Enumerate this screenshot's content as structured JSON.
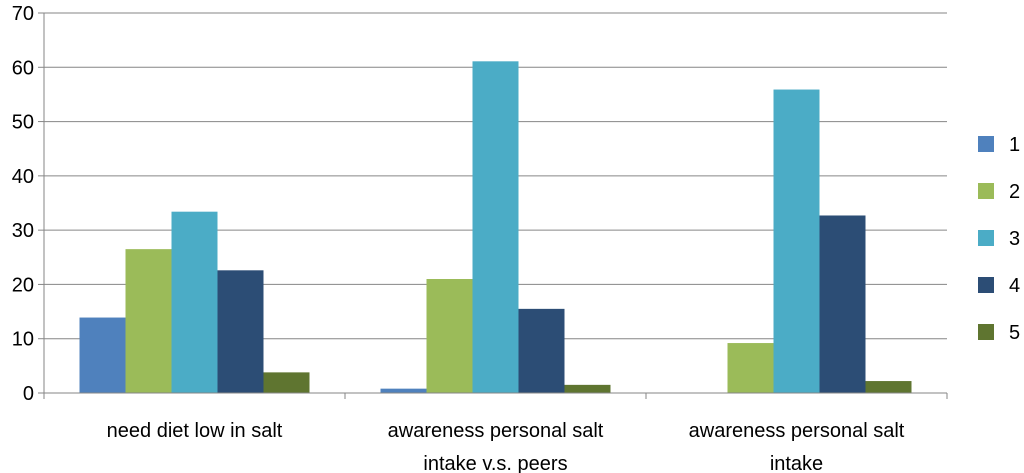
{
  "chart_data": {
    "type": "bar",
    "title": "",
    "xlabel": "",
    "ylabel": "",
    "ylim": [
      0,
      70
    ],
    "yticks": [
      0,
      10,
      20,
      30,
      40,
      50,
      60,
      70
    ],
    "grid": true,
    "legend_position": "right",
    "categories": [
      [
        "need diet low in salt"
      ],
      [
        "awareness personal salt",
        "intake v.s. peers"
      ],
      [
        "awareness personal salt",
        "intake"
      ]
    ],
    "series": [
      {
        "name": "1",
        "color": "#4F81BD",
        "values": [
          13.9,
          0.8,
          0
        ]
      },
      {
        "name": "2",
        "color": "#9BBB59",
        "values": [
          26.5,
          21.0,
          9.2
        ]
      },
      {
        "name": "3",
        "color": "#4BACC6",
        "values": [
          33.4,
          61.1,
          55.9
        ]
      },
      {
        "name": "4",
        "color": "#2C4D75",
        "values": [
          22.6,
          15.5,
          32.7
        ]
      },
      {
        "name": "5",
        "color": "#5F7530",
        "values": [
          3.8,
          1.5,
          2.2
        ]
      }
    ]
  }
}
